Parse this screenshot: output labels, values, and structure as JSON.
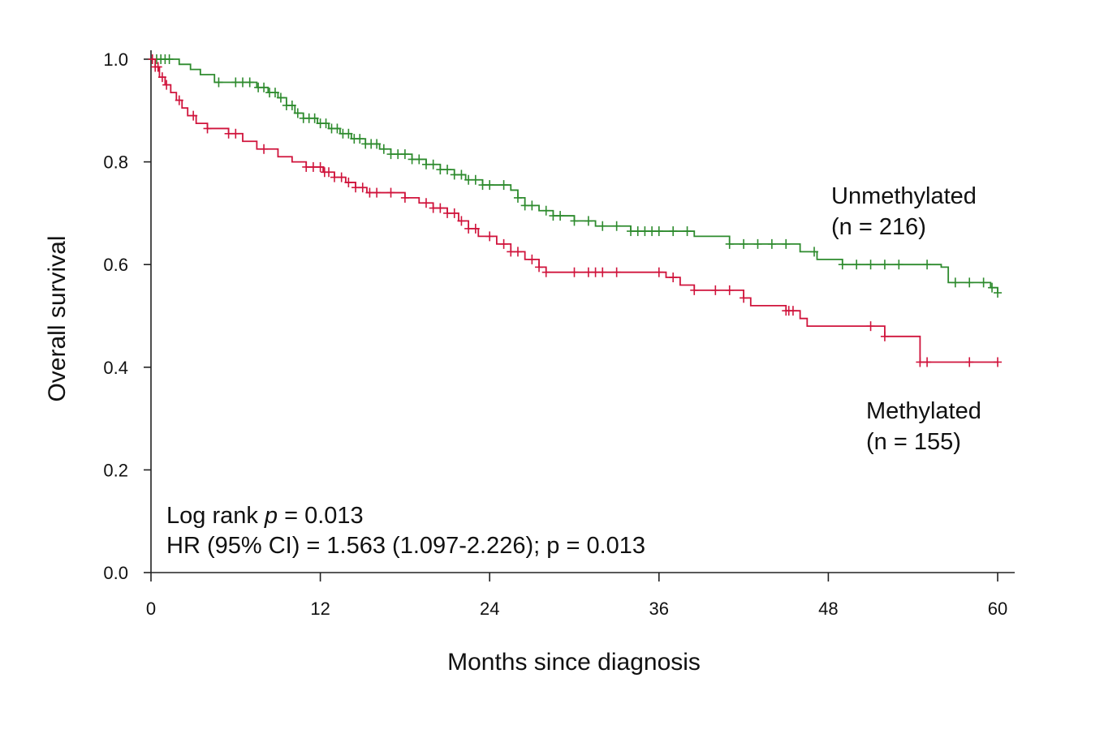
{
  "chart_data": {
    "type": "line",
    "xlabel": "Months since diagnosis",
    "ylabel": "Overall survival",
    "xlim": [
      0,
      60
    ],
    "ylim": [
      0,
      1
    ],
    "xticks": [
      "0",
      "12",
      "24",
      "36",
      "48",
      "60"
    ],
    "yticks": [
      "0.0",
      "0.2",
      "0.4",
      "0.6",
      "0.8",
      "1.0"
    ],
    "grid": false,
    "annotations": {
      "logrank_prefix": "Log rank ",
      "logrank_p": "p",
      "logrank_value": " = 0.013",
      "hr": "HR (95% CI) = 1.563 (1.097-2.226); p = 0.013"
    },
    "series": [
      {
        "name": "Unmethylated",
        "n_label": "(n = 216)",
        "color": "#2e8b2e",
        "steps": [
          [
            0,
            1.0
          ],
          [
            1.2,
            1.0
          ],
          [
            2.0,
            0.99
          ],
          [
            2.8,
            0.98
          ],
          [
            3.5,
            0.97
          ],
          [
            4.5,
            0.955
          ],
          [
            6.5,
            0.955
          ],
          [
            7.5,
            0.945
          ],
          [
            8.3,
            0.935
          ],
          [
            9.0,
            0.925
          ],
          [
            9.6,
            0.91
          ],
          [
            10.2,
            0.895
          ],
          [
            10.8,
            0.885
          ],
          [
            11.8,
            0.875
          ],
          [
            12.6,
            0.865
          ],
          [
            13.4,
            0.855
          ],
          [
            14.2,
            0.845
          ],
          [
            15.2,
            0.835
          ],
          [
            16.2,
            0.825
          ],
          [
            17.0,
            0.815
          ],
          [
            18.5,
            0.805
          ],
          [
            19.5,
            0.795
          ],
          [
            20.5,
            0.785
          ],
          [
            21.5,
            0.775
          ],
          [
            22.3,
            0.765
          ],
          [
            23.5,
            0.755
          ],
          [
            25.5,
            0.745
          ],
          [
            26.0,
            0.73
          ],
          [
            26.5,
            0.715
          ],
          [
            27.5,
            0.705
          ],
          [
            28.5,
            0.695
          ],
          [
            30.0,
            0.685
          ],
          [
            31.5,
            0.675
          ],
          [
            34.0,
            0.665
          ],
          [
            38.5,
            0.655
          ],
          [
            41.0,
            0.64
          ],
          [
            46.0,
            0.625
          ],
          [
            47.2,
            0.61
          ],
          [
            49.0,
            0.6
          ],
          [
            56.0,
            0.595
          ],
          [
            56.5,
            0.565
          ],
          [
            59.5,
            0.555
          ],
          [
            60.0,
            0.545
          ]
        ],
        "censors": [
          0.1,
          0.4,
          0.7,
          1.0,
          1.3,
          4.8,
          6.0,
          6.5,
          7.0,
          7.6,
          8.0,
          8.4,
          8.8,
          9.2,
          9.6,
          10.0,
          10.4,
          10.8,
          11.2,
          11.6,
          12.0,
          12.4,
          12.8,
          13.2,
          13.6,
          14.0,
          14.4,
          14.8,
          15.2,
          15.6,
          16.0,
          16.5,
          17.0,
          17.5,
          18.0,
          18.5,
          19.0,
          19.5,
          20.0,
          20.5,
          21.0,
          21.5,
          22.0,
          22.5,
          23.0,
          23.5,
          24.0,
          25.0,
          26.0,
          26.5,
          27.0,
          28.0,
          28.5,
          29.0,
          30.0,
          31.0,
          32.0,
          33.0,
          34.0,
          34.5,
          35.0,
          35.5,
          36.0,
          37.0,
          38.0,
          41.0,
          42.0,
          43.0,
          44.0,
          45.0,
          47.0,
          49.0,
          50.0,
          51.0,
          52.0,
          53.0,
          55.0,
          57.0,
          58.0,
          59.0,
          59.6,
          60.0
        ]
      },
      {
        "name": "Methylated",
        "n_label": "(n = 155)",
        "color": "#d0143c",
        "steps": [
          [
            0,
            1.0
          ],
          [
            0.3,
            0.985
          ],
          [
            0.6,
            0.965
          ],
          [
            1.0,
            0.95
          ],
          [
            1.4,
            0.935
          ],
          [
            1.8,
            0.92
          ],
          [
            2.2,
            0.905
          ],
          [
            2.6,
            0.89
          ],
          [
            3.2,
            0.875
          ],
          [
            4.0,
            0.865
          ],
          [
            5.5,
            0.855
          ],
          [
            6.5,
            0.84
          ],
          [
            7.5,
            0.825
          ],
          [
            9.0,
            0.81
          ],
          [
            10.0,
            0.8
          ],
          [
            11.0,
            0.79
          ],
          [
            12.2,
            0.78
          ],
          [
            13.0,
            0.77
          ],
          [
            13.8,
            0.76
          ],
          [
            14.5,
            0.75
          ],
          [
            15.3,
            0.74
          ],
          [
            18.0,
            0.73
          ],
          [
            19.0,
            0.72
          ],
          [
            20.0,
            0.71
          ],
          [
            21.0,
            0.7
          ],
          [
            21.8,
            0.685
          ],
          [
            22.5,
            0.67
          ],
          [
            23.2,
            0.655
          ],
          [
            24.5,
            0.64
          ],
          [
            25.5,
            0.625
          ],
          [
            26.5,
            0.61
          ],
          [
            27.5,
            0.595
          ],
          [
            28.0,
            0.585
          ],
          [
            36.5,
            0.575
          ],
          [
            37.5,
            0.56
          ],
          [
            38.5,
            0.55
          ],
          [
            42.0,
            0.535
          ],
          [
            42.5,
            0.52
          ],
          [
            45.0,
            0.51
          ],
          [
            46.0,
            0.495
          ],
          [
            46.5,
            0.48
          ],
          [
            52.0,
            0.46
          ],
          [
            54.5,
            0.455
          ],
          [
            54.5,
            0.41
          ],
          [
            60.0,
            0.41
          ]
        ],
        "censors": [
          0.1,
          0.3,
          0.5,
          0.8,
          1.1,
          2.0,
          3.0,
          4.0,
          5.5,
          6.0,
          8.0,
          11.0,
          11.5,
          12.0,
          12.3,
          12.6,
          13.0,
          13.5,
          14.0,
          14.5,
          15.0,
          15.5,
          16.0,
          17.0,
          18.0,
          19.5,
          20.0,
          20.5,
          21.0,
          21.5,
          22.0,
          22.5,
          23.0,
          24.0,
          25.0,
          25.5,
          26.0,
          27.0,
          27.5,
          28.0,
          30.0,
          31.0,
          31.5,
          32.0,
          33.0,
          36.0,
          37.0,
          38.5,
          40.0,
          41.0,
          42.0,
          45.0,
          45.2,
          45.5,
          51.0,
          52.0,
          54.5,
          55.0,
          58.0,
          60.0
        ]
      }
    ]
  }
}
